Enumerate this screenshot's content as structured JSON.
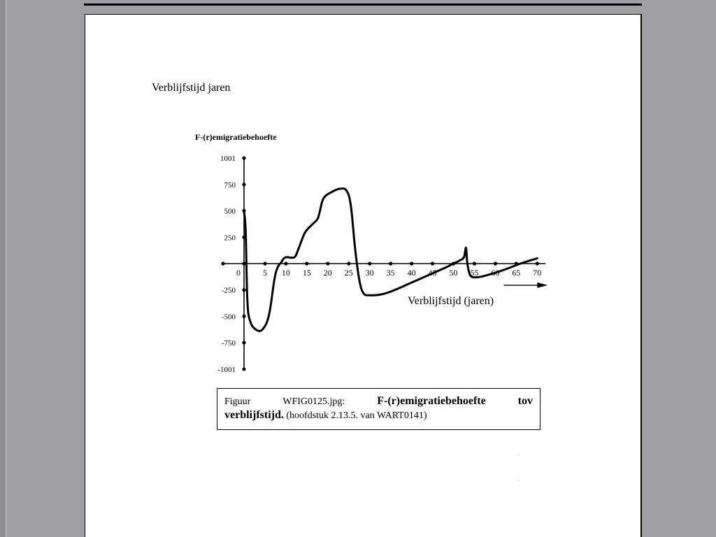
{
  "document": {
    "heading": "Verblijfstijd jaren"
  },
  "chart_data": {
    "type": "line",
    "title": "F-(r)emigratiebehoefte",
    "xlabel": "Verblijfstijd (jaren)",
    "ylabel": "F-(r)emigratiebehoefte",
    "xlim": [
      -5,
      72
    ],
    "ylim": [
      -1001,
      1001
    ],
    "x_ticks": [
      0,
      5,
      10,
      15,
      20,
      25,
      30,
      35,
      40,
      45,
      50,
      55,
      60,
      65,
      70
    ],
    "x_tick_labels": [
      "0",
      "5",
      "10",
      "15",
      "20",
      "25",
      "30",
      "35",
      "40",
      "45",
      "50",
      "55",
      "60",
      "65",
      "70"
    ],
    "y_ticks": [
      1001,
      750,
      500,
      250,
      0,
      -250,
      -500,
      -750,
      -1001
    ],
    "y_tick_labels": [
      "1001",
      "750",
      "500",
      "250",
      "",
      "-250",
      "-500",
      "-750",
      "-1001"
    ],
    "grid": false,
    "series": [
      {
        "x": [
          0,
          0.4,
          0.8,
          1.5,
          3,
          4.5,
          6,
          7.5,
          9,
          10,
          12,
          13,
          14.5,
          16,
          17.5,
          18,
          19,
          21,
          23,
          24.5,
          25.5,
          26.5,
          27.5,
          28.5,
          30,
          33,
          36,
          40,
          44,
          48,
          50,
          51.5,
          52.5,
          53,
          53.3,
          54,
          55.5,
          58,
          62,
          66,
          70
        ],
        "y": [
          500,
          300,
          -350,
          -550,
          -630,
          -620,
          -480,
          -100,
          20,
          60,
          60,
          140,
          290,
          360,
          420,
          480,
          620,
          680,
          710,
          690,
          550,
          150,
          -150,
          -280,
          -300,
          -290,
          -250,
          -180,
          -110,
          -40,
          0,
          30,
          60,
          150,
          10,
          -110,
          -130,
          -110,
          -60,
          0,
          50
        ]
      }
    ]
  },
  "caption": {
    "prefix": "Figuur",
    "filename": "WFIG0125.jpg:",
    "title_part1": "F-(r)emigratiebehoefte",
    "title_part2": "tov",
    "title_part3": "verblijfstijd.",
    "reference": "(hoofdstuk 2.13.5. van WART0141)"
  }
}
